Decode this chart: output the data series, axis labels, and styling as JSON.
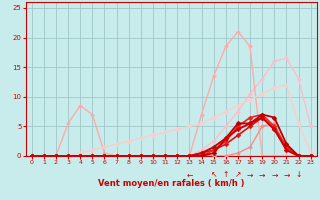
{
  "title": "",
  "xlabel": "Vent moyen/en rafales ( km/h )",
  "xlim": [
    -0.5,
    23.5
  ],
  "ylim": [
    0,
    26
  ],
  "xticks": [
    0,
    1,
    2,
    3,
    4,
    5,
    6,
    7,
    8,
    9,
    10,
    11,
    12,
    13,
    14,
    15,
    16,
    17,
    18,
    19,
    20,
    21,
    22,
    23
  ],
  "yticks": [
    0,
    5,
    10,
    15,
    20,
    25
  ],
  "bg_color": "#c8ecec",
  "grid_color": "#a0c8c8",
  "series": [
    {
      "x": [
        0,
        1,
        2,
        3,
        4,
        5,
        6,
        7,
        8,
        9,
        10,
        11,
        12,
        13,
        14,
        15,
        16,
        17,
        18,
        19,
        20,
        21,
        22,
        23
      ],
      "y": [
        0,
        0,
        0,
        0,
        0,
        0,
        0,
        0,
        0,
        0,
        0,
        0,
        0,
        0,
        0,
        0,
        0,
        0,
        0,
        0,
        0,
        0,
        0,
        0
      ],
      "color": "#ffaaaa",
      "linewidth": 0.8,
      "marker": "D",
      "markersize": 2.0,
      "zorder": 2
    },
    {
      "x": [
        0,
        1,
        2,
        3,
        4,
        5,
        6,
        7,
        8,
        9,
        10,
        11,
        12,
        13,
        14,
        15,
        16,
        17,
        18,
        19,
        20,
        21,
        22,
        23
      ],
      "y": [
        0,
        0,
        0,
        0,
        0,
        0,
        0,
        0,
        0,
        0,
        0,
        0,
        0,
        0,
        1.0,
        2.5,
        5.0,
        7.5,
        10.5,
        13.0,
        16.0,
        16.5,
        13.0,
        5.0
      ],
      "color": "#ffbbcc",
      "linewidth": 1.0,
      "marker": "D",
      "markersize": 2.0,
      "zorder": 2
    },
    {
      "x": [
        0,
        1,
        2,
        3,
        4,
        5,
        6,
        7,
        8,
        9,
        10,
        11,
        12,
        13,
        14,
        15,
        16,
        17,
        18,
        19,
        20,
        21,
        22,
        23
      ],
      "y": [
        0,
        0,
        0,
        5.5,
        8.5,
        7.0,
        0.5,
        0,
        0,
        0,
        0,
        0,
        0,
        0,
        7.0,
        13.5,
        18.5,
        21.0,
        18.5,
        0,
        0,
        0,
        0,
        0
      ],
      "color": "#ffaaaa",
      "linewidth": 1.0,
      "marker": "D",
      "markersize": 2.0,
      "zorder": 2
    },
    {
      "x": [
        0,
        1,
        2,
        3,
        4,
        5,
        6,
        7,
        8,
        9,
        10,
        11,
        12,
        13,
        14,
        15,
        16,
        17,
        18,
        19,
        20,
        21,
        22,
        23
      ],
      "y": [
        0,
        0,
        0,
        0,
        0.5,
        1.0,
        1.5,
        2.0,
        2.5,
        3.0,
        3.5,
        4.0,
        4.5,
        5.0,
        5.5,
        6.5,
        7.5,
        8.5,
        9.5,
        10.5,
        11.5,
        12.0,
        5.5,
        0.5
      ],
      "color": "#ffcccc",
      "linewidth": 1.0,
      "marker": "D",
      "markersize": 2.0,
      "zorder": 2
    },
    {
      "x": [
        0,
        1,
        2,
        3,
        4,
        5,
        6,
        7,
        8,
        9,
        10,
        11,
        12,
        13,
        14,
        15,
        16,
        17,
        18,
        19,
        20,
        21,
        22,
        23
      ],
      "y": [
        0,
        0,
        0,
        0,
        0,
        0,
        0,
        0,
        0,
        0,
        0,
        0,
        0,
        0,
        0,
        0,
        0,
        0.5,
        1.5,
        5.0,
        5.5,
        1.0,
        0,
        0
      ],
      "color": "#ff8888",
      "linewidth": 1.0,
      "marker": "D",
      "markersize": 2.0,
      "zorder": 3
    },
    {
      "x": [
        0,
        1,
        2,
        3,
        4,
        5,
        6,
        7,
        8,
        9,
        10,
        11,
        12,
        13,
        14,
        15,
        16,
        17,
        18,
        19,
        20,
        21,
        22,
        23
      ],
      "y": [
        0,
        0,
        0,
        0,
        0,
        0,
        0,
        0,
        0,
        0,
        0,
        0,
        0,
        0,
        0.5,
        1.0,
        2.0,
        3.5,
        5.0,
        6.5,
        4.5,
        1.5,
        0,
        0
      ],
      "color": "#dd1111",
      "linewidth": 1.2,
      "marker": "D",
      "markersize": 2.5,
      "zorder": 4
    },
    {
      "x": [
        0,
        1,
        2,
        3,
        4,
        5,
        6,
        7,
        8,
        9,
        10,
        11,
        12,
        13,
        14,
        15,
        16,
        17,
        18,
        19,
        20,
        21,
        22,
        23
      ],
      "y": [
        0,
        0,
        0,
        0,
        0,
        0,
        0,
        0,
        0,
        0,
        0,
        0,
        0,
        0,
        0.5,
        1.5,
        3.0,
        4.5,
        5.5,
        6.5,
        4.5,
        1.0,
        0,
        0
      ],
      "color": "#cc0000",
      "linewidth": 1.4,
      "marker": "D",
      "markersize": 2.5,
      "zorder": 5
    },
    {
      "x": [
        0,
        1,
        2,
        3,
        4,
        5,
        6,
        7,
        8,
        9,
        10,
        11,
        12,
        13,
        14,
        15,
        16,
        17,
        18,
        19,
        20,
        21,
        22,
        23
      ],
      "y": [
        0,
        0,
        0,
        0,
        0,
        0,
        0,
        0,
        0,
        0,
        0,
        0,
        0,
        0,
        0,
        1.0,
        2.5,
        5.0,
        6.5,
        7.0,
        5.0,
        1.5,
        0,
        0
      ],
      "color": "#ee2222",
      "linewidth": 1.2,
      "marker": "D",
      "markersize": 2.5,
      "zorder": 4
    },
    {
      "x": [
        0,
        1,
        2,
        3,
        4,
        5,
        6,
        7,
        8,
        9,
        10,
        11,
        12,
        13,
        14,
        15,
        16,
        17,
        18,
        19,
        20,
        21,
        22,
        23
      ],
      "y": [
        0,
        0,
        0,
        0,
        0,
        0,
        0,
        0,
        0,
        0,
        0,
        0,
        0,
        0,
        0,
        0.5,
        3.0,
        5.5,
        5.5,
        7.0,
        6.5,
        2.0,
        0,
        0
      ],
      "color": "#bb0000",
      "linewidth": 1.3,
      "marker": "D",
      "markersize": 2.5,
      "zorder": 4
    }
  ],
  "wind_arrows": {
    "x": [
      13,
      15,
      16,
      17,
      18,
      19,
      20,
      21,
      22
    ],
    "symbols": [
      "←",
      "↖",
      "↑",
      "↗",
      "→",
      "→",
      "→",
      "→",
      "↓"
    ],
    "color": "#cc0000",
    "fontsize": 5.5
  }
}
